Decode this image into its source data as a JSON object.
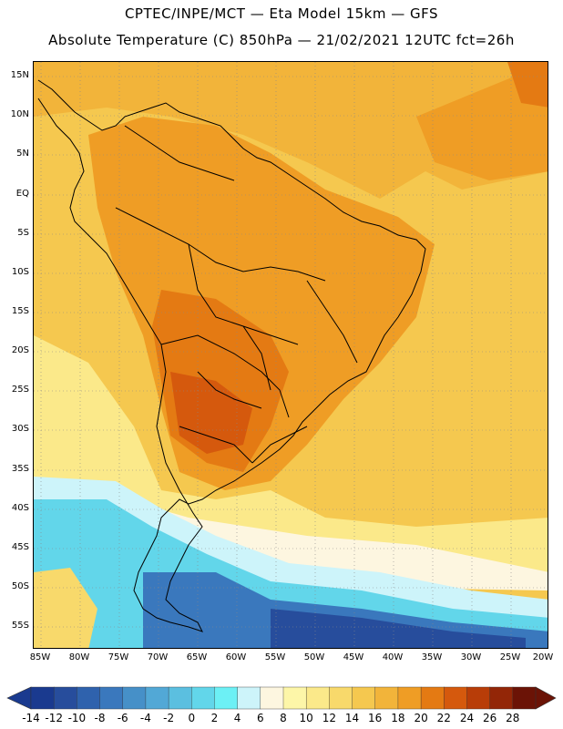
{
  "title": {
    "line1": "CPTEC/INPE/MCT —  Eta Model 15km — GFS",
    "line2": "Absolute Temperature (C) 850hPa — 21/02/2021 12UTC fct=26h"
  },
  "map": {
    "lat_labels": [
      "15N",
      "10N",
      "5N",
      "EQ",
      "5S",
      "10S",
      "15S",
      "20S",
      "25S",
      "30S",
      "35S",
      "40S",
      "45S",
      "50S",
      "55S"
    ],
    "lon_labels": [
      "85W",
      "80W",
      "75W",
      "70W",
      "65W",
      "60W",
      "55W",
      "50W",
      "45W",
      "40W",
      "35W",
      "30W",
      "25W",
      "20W"
    ]
  },
  "colorbar": {
    "labels": [
      "-14",
      "-12",
      "-10",
      "-8",
      "-6",
      "-4",
      "-2",
      "0",
      "2",
      "4",
      "6",
      "8",
      "10",
      "12",
      "14",
      "16",
      "18",
      "20",
      "22",
      "24",
      "26",
      "28"
    ],
    "colors": [
      "#1a3a8f",
      "#274d9c",
      "#2f62ad",
      "#3a78bd",
      "#4690c8",
      "#52a8d6",
      "#5bbfe0",
      "#62d6ea",
      "#6cf0f5",
      "#cdf4fa",
      "#fdf6e0",
      "#fdf6a8",
      "#fbe98a",
      "#f8d96b",
      "#f5c84f",
      "#f2b43a",
      "#ef9d25",
      "#e47a13",
      "#d5590d",
      "#b83d08",
      "#932607",
      "#6b1306"
    ]
  }
}
